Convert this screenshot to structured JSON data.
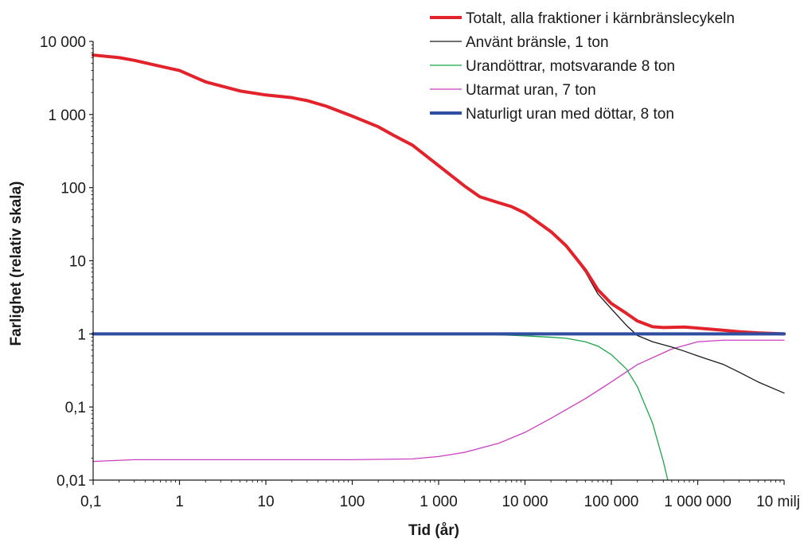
{
  "chart_data": {
    "type": "line",
    "title": "",
    "xlabel": "Tid (år)",
    "ylabel": "Farlighet (relativ skala)",
    "x_scale": "log",
    "y_scale": "log",
    "xlim": [
      0.1,
      10000000
    ],
    "ylim": [
      0.01,
      10000
    ],
    "grid": false,
    "legend_position": "top-right",
    "x_ticks": [
      {
        "value": 0.1,
        "label": "0,1"
      },
      {
        "value": 1,
        "label": "1"
      },
      {
        "value": 10,
        "label": "10"
      },
      {
        "value": 100,
        "label": "100"
      },
      {
        "value": 1000,
        "label": "1 000"
      },
      {
        "value": 10000,
        "label": "10 000"
      },
      {
        "value": 100000,
        "label": "100 000"
      },
      {
        "value": 1000000,
        "label": "1 000 000"
      },
      {
        "value": 10000000,
        "label": "10 milj"
      }
    ],
    "y_ticks": [
      {
        "value": 0.01,
        "label": "0,01"
      },
      {
        "value": 0.1,
        "label": "0,1"
      },
      {
        "value": 1,
        "label": "1"
      },
      {
        "value": 10,
        "label": "10"
      },
      {
        "value": 100,
        "label": "100"
      },
      {
        "value": 1000,
        "label": "1 000"
      },
      {
        "value": 10000,
        "label": "10 000"
      }
    ],
    "series": [
      {
        "name": "Totalt, alla fraktioner i kärnbränslecykeln",
        "color": "#e3232b",
        "width": 4,
        "points": [
          [
            0.1,
            6500
          ],
          [
            0.2,
            6000
          ],
          [
            0.3,
            5500
          ],
          [
            0.5,
            4800
          ],
          [
            1,
            4000
          ],
          [
            2,
            2800
          ],
          [
            5,
            2100
          ],
          [
            10,
            1850
          ],
          [
            20,
            1700
          ],
          [
            30,
            1550
          ],
          [
            50,
            1300
          ],
          [
            100,
            950
          ],
          [
            200,
            680
          ],
          [
            300,
            520
          ],
          [
            500,
            380
          ],
          [
            1000,
            200
          ],
          [
            2000,
            105
          ],
          [
            3000,
            75
          ],
          [
            5000,
            62
          ],
          [
            7000,
            55
          ],
          [
            10000,
            45
          ],
          [
            20000,
            25
          ],
          [
            30000,
            16
          ],
          [
            50000,
            7.5
          ],
          [
            70000,
            4
          ],
          [
            100000,
            2.6
          ],
          [
            150000,
            1.9
          ],
          [
            200000,
            1.5
          ],
          [
            300000,
            1.25
          ],
          [
            400000,
            1.22
          ],
          [
            500000,
            1.23
          ],
          [
            700000,
            1.24
          ],
          [
            1000000,
            1.2
          ],
          [
            2000000,
            1.12
          ],
          [
            3000000,
            1.07
          ],
          [
            5000000,
            1.03
          ],
          [
            10000000,
            1.0
          ]
        ]
      },
      {
        "name": "Använt bränsle, 1 ton",
        "color": "#1a1a1a",
        "width": 1.3,
        "points": [
          [
            0.1,
            6500
          ],
          [
            0.2,
            6000
          ],
          [
            0.3,
            5500
          ],
          [
            0.5,
            4800
          ],
          [
            1,
            4000
          ],
          [
            2,
            2800
          ],
          [
            5,
            2100
          ],
          [
            10,
            1850
          ],
          [
            20,
            1700
          ],
          [
            30,
            1550
          ],
          [
            50,
            1300
          ],
          [
            100,
            950
          ],
          [
            200,
            680
          ],
          [
            300,
            520
          ],
          [
            500,
            380
          ],
          [
            1000,
            200
          ],
          [
            2000,
            105
          ],
          [
            3000,
            75
          ],
          [
            5000,
            62
          ],
          [
            7000,
            55
          ],
          [
            10000,
            45
          ],
          [
            20000,
            25
          ],
          [
            30000,
            16
          ],
          [
            50000,
            7
          ],
          [
            70000,
            3.5
          ],
          [
            100000,
            2.2
          ],
          [
            150000,
            1.3
          ],
          [
            200000,
            0.95
          ],
          [
            300000,
            0.78
          ],
          [
            500000,
            0.66
          ],
          [
            700000,
            0.58
          ],
          [
            1000000,
            0.5
          ],
          [
            2000000,
            0.38
          ],
          [
            3000000,
            0.3
          ],
          [
            5000000,
            0.22
          ],
          [
            10000000,
            0.155
          ]
        ]
      },
      {
        "name": "Urandöttrar, motsvarande 8 ton",
        "color": "#1ba64a",
        "width": 1.3,
        "points": [
          [
            0.1,
            1
          ],
          [
            1000,
            1
          ],
          [
            3000,
            0.99
          ],
          [
            5000,
            0.97
          ],
          [
            10000,
            0.94
          ],
          [
            20000,
            0.9
          ],
          [
            30000,
            0.87
          ],
          [
            50000,
            0.78
          ],
          [
            70000,
            0.68
          ],
          [
            100000,
            0.52
          ],
          [
            150000,
            0.33
          ],
          [
            200000,
            0.19
          ],
          [
            300000,
            0.06
          ],
          [
            400000,
            0.018
          ],
          [
            450000,
            0.01
          ]
        ]
      },
      {
        "name": "Utarmat uran, 7 ton",
        "color": "#cc3ec1",
        "width": 1.3,
        "points": [
          [
            0.1,
            0.018
          ],
          [
            0.3,
            0.019
          ],
          [
            1,
            0.019
          ],
          [
            10,
            0.019
          ],
          [
            100,
            0.019
          ],
          [
            500,
            0.0195
          ],
          [
            1000,
            0.021
          ],
          [
            2000,
            0.024
          ],
          [
            5000,
            0.032
          ],
          [
            10000,
            0.045
          ],
          [
            20000,
            0.07
          ],
          [
            50000,
            0.13
          ],
          [
            100000,
            0.22
          ],
          [
            200000,
            0.38
          ],
          [
            500000,
            0.62
          ],
          [
            1000000,
            0.78
          ],
          [
            2000000,
            0.82
          ],
          [
            5000000,
            0.82
          ],
          [
            10000000,
            0.82
          ]
        ]
      },
      {
        "name": "Naturligt uran med döttar, 8 ton",
        "color": "#2f4e9f",
        "width": 4,
        "points": [
          [
            0.1,
            1
          ],
          [
            10000000,
            1
          ]
        ]
      }
    ]
  }
}
